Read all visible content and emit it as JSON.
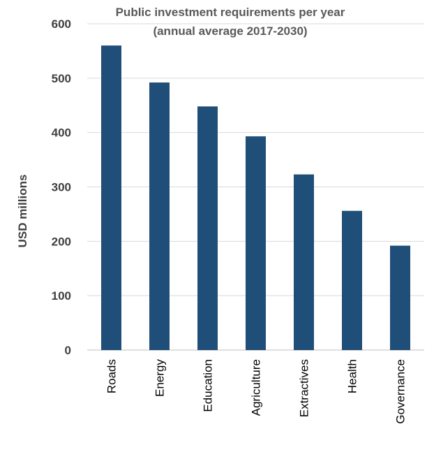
{
  "chart_data": {
    "type": "bar",
    "title": "Public investment requirements per year",
    "subtitle": "(annual average 2017-2030)",
    "xlabel": "",
    "ylabel": "USD millions",
    "categories": [
      "Roads",
      "Energy",
      "Education",
      "Agriculture",
      "Extractives",
      "Health",
      "Governance"
    ],
    "values": [
      560,
      492,
      448,
      393,
      323,
      256,
      192
    ],
    "ylim": [
      0,
      600
    ],
    "yticks": [
      0,
      100,
      200,
      300,
      400,
      500,
      600
    ],
    "grid": true,
    "legend": "none",
    "bar_color": "#1f4e79"
  }
}
